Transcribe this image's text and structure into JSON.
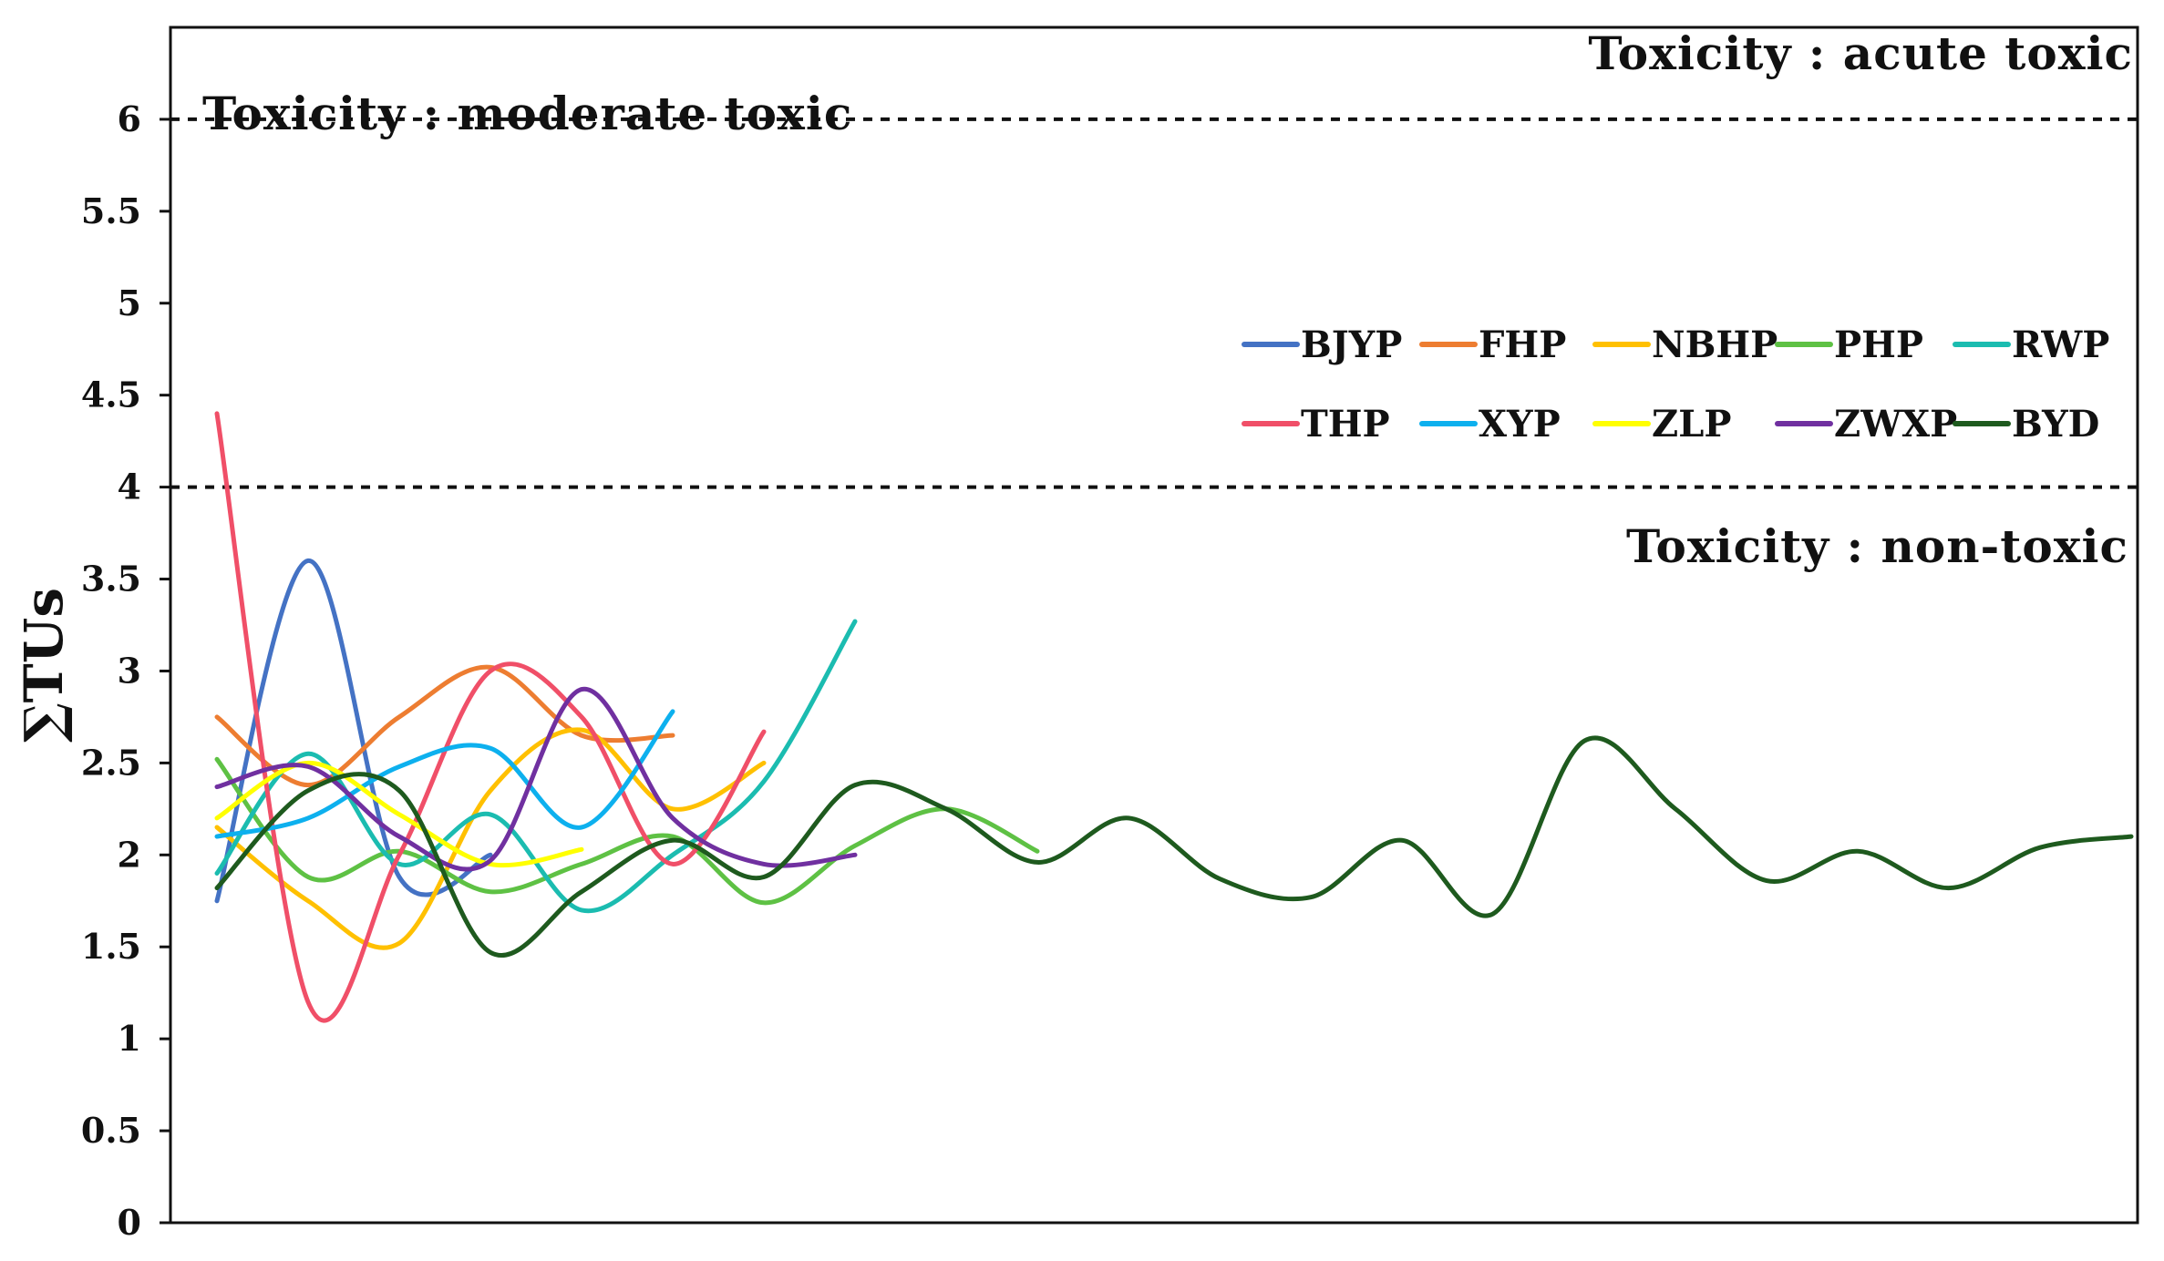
{
  "chart_data": {
    "type": "line",
    "title": "",
    "xlabel": "",
    "ylabel": "∑TUs",
    "ylim": [
      0,
      6.5
    ],
    "yticks": [
      "0",
      "0.5",
      "1",
      "1.5",
      "2",
      "2.5",
      "3",
      "3.5",
      "4",
      "4.5",
      "5",
      "5.5",
      "6"
    ],
    "grid": false,
    "legend_position": "right, inside plot",
    "thresholds": [
      {
        "value": 6,
        "style": "dashed"
      },
      {
        "value": 4,
        "style": "dashed"
      }
    ],
    "annotations": [
      "Toxicity : acute toxic",
      "Toxicity : moderate toxic",
      "Toxicity : non-toxic"
    ],
    "series": [
      {
        "name": "BJYP",
        "color": "#4472c4",
        "values": [
          1.75,
          3.6,
          1.88,
          2.0
        ]
      },
      {
        "name": "FHP",
        "color": "#ed7d31",
        "values": [
          2.75,
          2.38,
          2.75,
          3.02,
          2.65,
          2.65
        ]
      },
      {
        "name": "NBHP",
        "color": "#ffc000",
        "values": [
          2.15,
          1.75,
          1.52,
          2.35,
          2.68,
          2.25,
          2.5
        ]
      },
      {
        "name": "PHP",
        "color": "#5ec144",
        "values": [
          2.52,
          1.88,
          2.02,
          1.8,
          1.95,
          2.1,
          1.74,
          2.05,
          2.25,
          2.02
        ]
      },
      {
        "name": "RWP",
        "color": "#1bbcb0",
        "values": [
          1.9,
          2.55,
          1.95,
          2.22,
          1.7,
          2.0,
          2.4,
          3.27
        ]
      },
      {
        "name": "THP",
        "color": "#f04f68",
        "values": [
          4.4,
          1.2,
          2.0,
          3.0,
          2.75,
          1.95,
          2.67
        ]
      },
      {
        "name": "XYP",
        "color": "#0db0ee",
        "values": [
          2.1,
          2.2,
          2.48,
          2.58,
          2.15,
          2.78
        ]
      },
      {
        "name": "ZLP",
        "color": "#ffff00",
        "values": [
          2.2,
          2.5,
          2.22,
          1.95,
          2.03
        ]
      },
      {
        "name": "ZWXP",
        "color": "#7030a0",
        "values": [
          2.37,
          2.48,
          2.1,
          1.97,
          2.9,
          2.2,
          1.95,
          2.0
        ]
      },
      {
        "name": "BYD",
        "color": "#1e5a1e",
        "values": [
          1.82,
          2.35,
          2.35,
          1.47,
          1.8,
          2.08,
          1.88,
          2.38,
          2.25,
          1.96,
          2.2,
          1.87,
          1.77,
          2.08,
          1.68,
          2.62,
          2.25,
          1.86,
          2.02,
          1.82,
          2.04,
          2.1
        ]
      }
    ]
  }
}
